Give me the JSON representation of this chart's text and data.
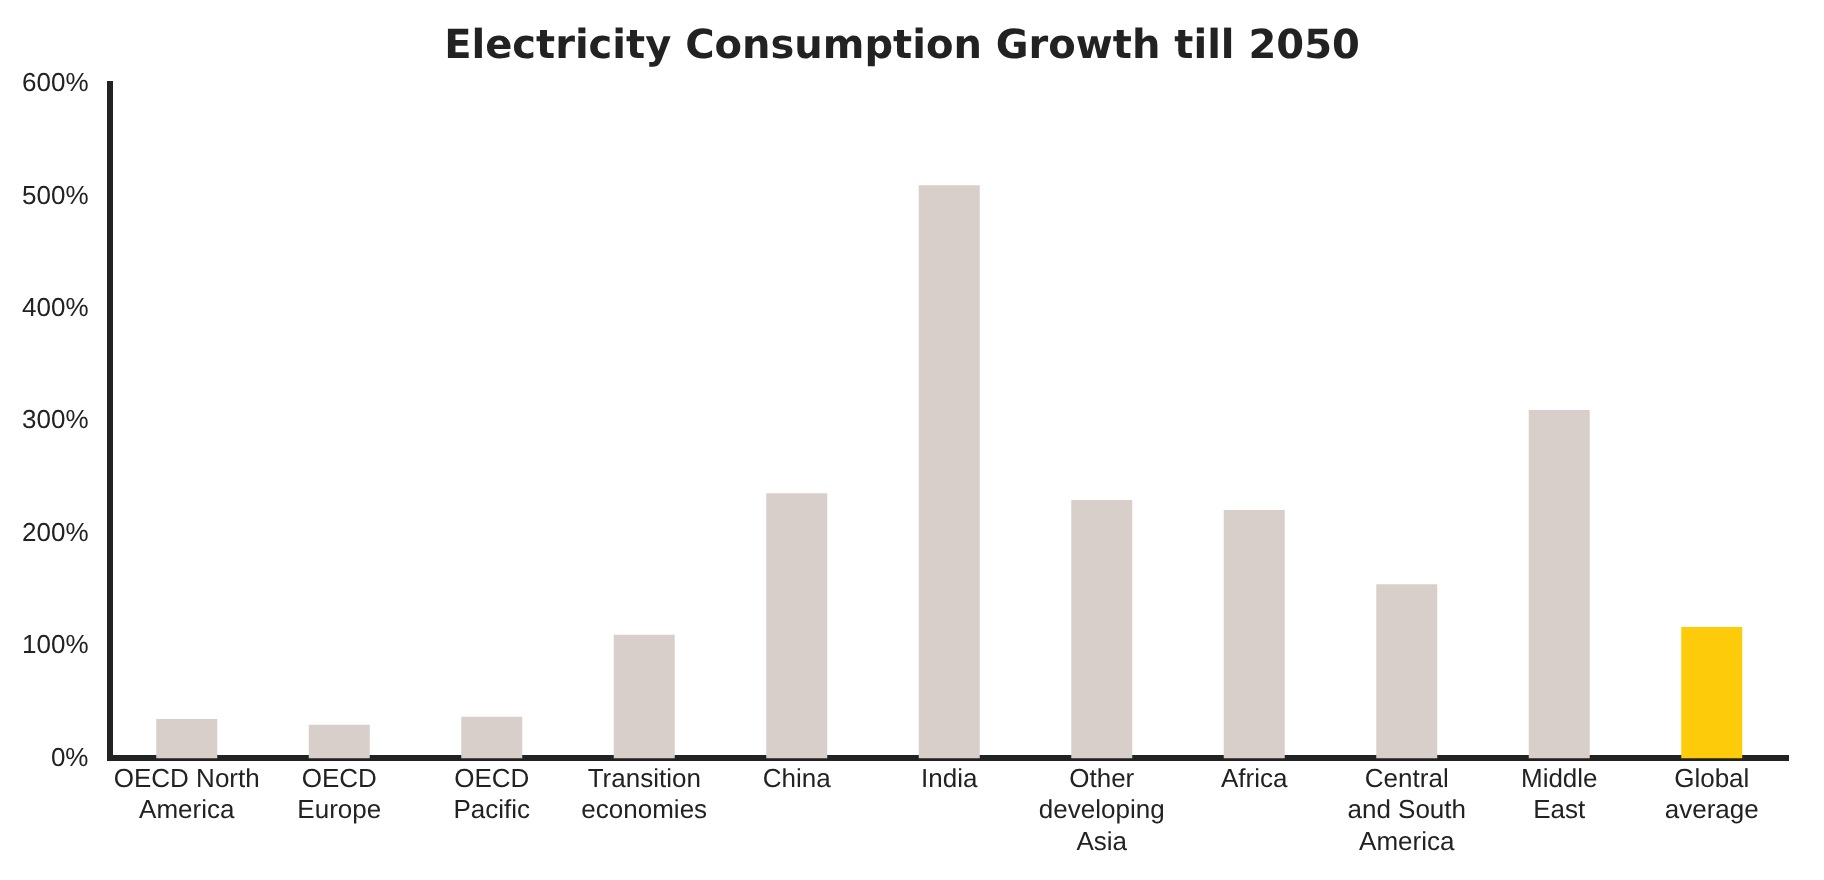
{
  "chart_data": {
    "type": "bar",
    "title": "Electricity Consumption Growth till 2050",
    "categories": [
      "OECD North America",
      "OECD Europe",
      "OECD Pacific",
      "Transition economies",
      "China",
      "India",
      "Other developing Asia",
      "Africa",
      "Central and South America",
      "Middle East",
      "Global average"
    ],
    "values": [
      35,
      30,
      37,
      110,
      236,
      510,
      230,
      221,
      155,
      310,
      117
    ],
    "colors": [
      "#d8cfca",
      "#d8cfca",
      "#d8cfca",
      "#d8cfca",
      "#d8cfca",
      "#d8cfca",
      "#d8cfca",
      "#d8cfca",
      "#d8cfca",
      "#d8cfca",
      "#fecb0a"
    ],
    "ylim": [
      0,
      600
    ],
    "yticks": [
      {
        "value": 0,
        "label": "0%"
      },
      {
        "value": 100,
        "label": "100%"
      },
      {
        "value": 200,
        "label": "200%"
      },
      {
        "value": 300,
        "label": "300%"
      },
      {
        "value": 400,
        "label": "400%"
      },
      {
        "value": 500,
        "label": "500%"
      },
      {
        "value": 600,
        "label": "600%"
      }
    ],
    "grid": false,
    "legend": false
  }
}
